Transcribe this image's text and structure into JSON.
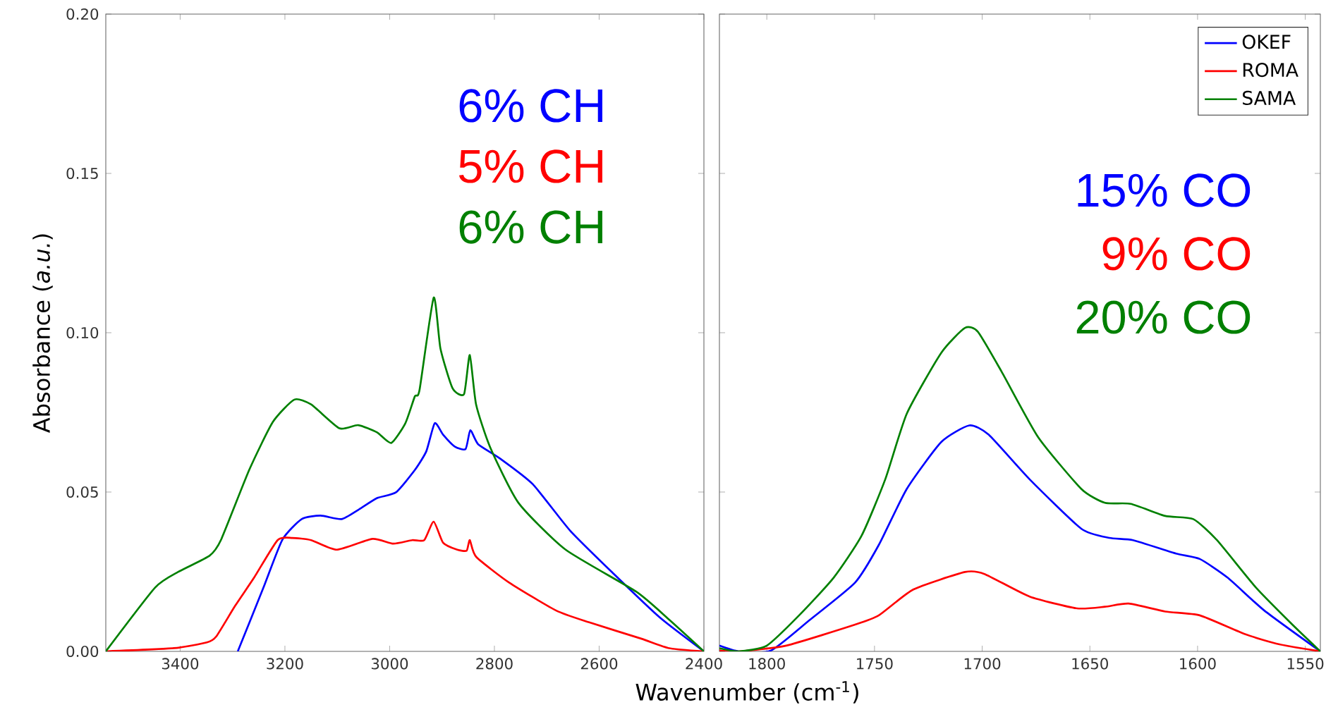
{
  "chart_data": [
    {
      "type": "line",
      "xlabel": "Wavenumber (cm$^{-1}$)",
      "ylabel": "Absorbance (*a.u.*)",
      "xlim": [
        3542,
        2400
      ],
      "ylim": [
        0,
        0.2
      ],
      "xticks": [
        3400,
        3200,
        3000,
        2800,
        2600,
        2400
      ],
      "yticks": [
        {
          "value": 0,
          "label": "0.00"
        },
        {
          "value": 0.05,
          "label": "0.05"
        },
        {
          "value": 0.1,
          "label": "0.10"
        },
        {
          "value": 0.15,
          "label": "0.15"
        },
        {
          "value": 0.2,
          "label": "0.20"
        }
      ],
      "series": [
        {
          "color": "#0000ff",
          "x": [
            3290,
            3241,
            3205,
            3168,
            3132,
            3092,
            3060,
            3024,
            2988,
            2952,
            2930,
            2914,
            2898,
            2876,
            2855,
            2846,
            2831,
            2790,
            2727,
            2655,
            2574,
            2484,
            2400
          ],
          "values": [
            0,
            0.02,
            0.035,
            0.0415,
            0.0426,
            0.0415,
            0.0444,
            0.0481,
            0.0499,
            0.0569,
            0.0628,
            0.0716,
            0.068,
            0.0643,
            0.0635,
            0.0694,
            0.065,
            0.0606,
            0.0525,
            0.0378,
            0.0246,
            0.0106,
            0
          ]
        },
        {
          "color": "#ff0000",
          "x": [
            3542,
            3412,
            3349,
            3331,
            3295,
            3259,
            3214,
            3186,
            3150,
            3101,
            3033,
            2993,
            2957,
            2934,
            2916,
            2898,
            2871,
            2853,
            2847,
            2835,
            2772,
            2682,
            2619,
            2520,
            2466,
            2400
          ],
          "values": [
            0,
            0.001,
            0.0028,
            0.0047,
            0.0143,
            0.0231,
            0.0349,
            0.0356,
            0.0349,
            0.0319,
            0.0353,
            0.0338,
            0.0349,
            0.0349,
            0.0407,
            0.0341,
            0.0319,
            0.0316,
            0.0349,
            0.0297,
            0.0216,
            0.0128,
            0.0091,
            0.004,
            0.001,
            0
          ]
        },
        {
          "color": "#008000",
          "x": [
            3542,
            3448,
            3403,
            3344,
            3322,
            3268,
            3223,
            3182,
            3150,
            3096,
            3060,
            3024,
            2997,
            2970,
            2952,
            2943,
            2916,
            2903,
            2880,
            2858,
            2847,
            2835,
            2808,
            2754,
            2664,
            2529,
            2466,
            2400
          ],
          "values": [
            0,
            0.02,
            0.025,
            0.03,
            0.035,
            0.057,
            0.072,
            0.079,
            0.0775,
            0.07,
            0.071,
            0.0687,
            0.0654,
            0.0716,
            0.08,
            0.082,
            0.111,
            0.095,
            0.0826,
            0.0807,
            0.093,
            0.0775,
            0.064,
            0.0466,
            0.0319,
            0.0187,
            0.0099,
            0
          ]
        }
      ],
      "annotations": [
        "6% CH",
        "5% CH",
        "6% CH"
      ]
    },
    {
      "type": "line",
      "xlim": [
        1822,
        1543
      ],
      "ylim": [
        0,
        0.2
      ],
      "xticks": [
        1800,
        1750,
        1700,
        1650,
        1600,
        1550
      ],
      "yticks": [
        0.0,
        0.05,
        0.1,
        0.15,
        0.2
      ],
      "tick_labels": "x",
      "legend": "top right",
      "series": [
        {
          "name": "OKEF",
          "color": "#0000ff",
          "x": [
            1822,
            1813,
            1798,
            1780,
            1759,
            1748,
            1735,
            1719,
            1706,
            1697,
            1678,
            1654,
            1641,
            1630,
            1610,
            1599,
            1586,
            1569,
            1543
          ],
          "values": [
            0.0018,
            0,
            0.0003,
            0.0099,
            0.0216,
            0.0334,
            0.051,
            0.0657,
            0.0709,
            0.068,
            0.054,
            0.0385,
            0.0356,
            0.0349,
            0.0307,
            0.029,
            0.0231,
            0.0128,
            0
          ]
        },
        {
          "name": "ROMA",
          "color": "#ff0000",
          "x": [
            1822,
            1813,
            1791,
            1759,
            1748,
            1732,
            1708,
            1699,
            1678,
            1656,
            1643,
            1632,
            1615,
            1599,
            1578,
            1562,
            1543
          ],
          "values": [
            0.0003,
            0,
            0.0018,
            0.0084,
            0.0113,
            0.0194,
            0.0249,
            0.0243,
            0.0172,
            0.0135,
            0.014,
            0.015,
            0.0125,
            0.0113,
            0.0054,
            0.0022,
            0
          ]
        },
        {
          "name": "SAMA",
          "color": "#008000",
          "x": [
            1822,
            1813,
            1800,
            1785,
            1769,
            1756,
            1745,
            1735,
            1719,
            1708,
            1702,
            1691,
            1674,
            1654,
            1643,
            1631,
            1615,
            1602,
            1591,
            1573,
            1556,
            1543
          ],
          "values": [
            0.001,
            0,
            0.0018,
            0.0113,
            0.0231,
            0.0363,
            0.054,
            0.0746,
            0.0937,
            0.1015,
            0.1003,
            0.0878,
            0.0672,
            0.051,
            0.0466,
            0.0463,
            0.0425,
            0.0415,
            0.0349,
            0.0201,
            0.0084,
            0
          ]
        }
      ],
      "annotations": [
        "15% CO",
        "9% CO",
        "20% CO"
      ]
    }
  ]
}
